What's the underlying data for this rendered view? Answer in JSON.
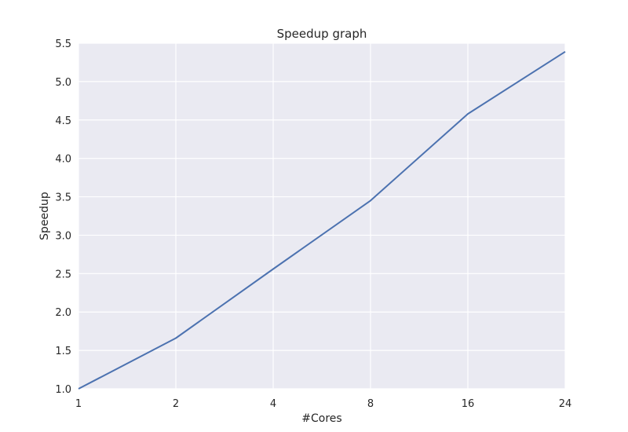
{
  "chart_data": {
    "type": "line",
    "title": "Speedup graph",
    "xlabel": "#Cores",
    "ylabel": "Speedup",
    "categories": [
      "1",
      "2",
      "4",
      "8",
      "16",
      "24"
    ],
    "series": [
      {
        "values": [
          1.0,
          1.66,
          2.56,
          3.45,
          4.58,
          5.39
        ]
      }
    ],
    "ylim": [
      1.0,
      5.5
    ],
    "yticks": [
      "1.0",
      "1.5",
      "2.0",
      "2.5",
      "3.0",
      "3.5",
      "4.0",
      "4.5",
      "5.0",
      "5.5"
    ],
    "grid": true,
    "line_color": "#4c72b0",
    "plot_background": "#eaeaf2",
    "grid_color": "#ffffff"
  }
}
